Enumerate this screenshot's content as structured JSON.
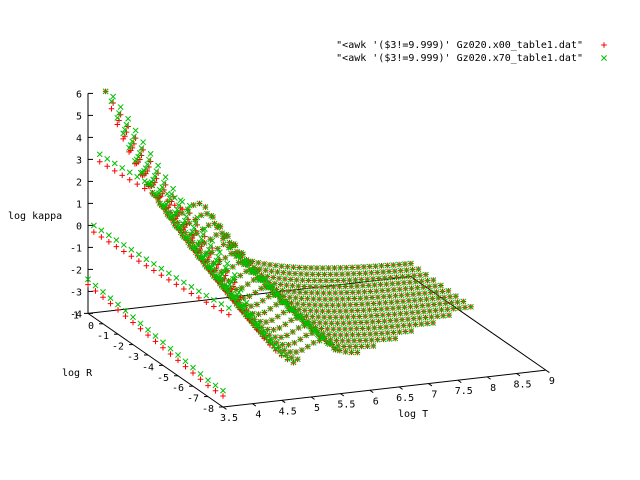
{
  "chart_data": {
    "type": "scatter",
    "title": "",
    "xlabel": "log T",
    "ylabel": "log R",
    "zlabel": "log kappa",
    "x_ticks": [
      "3.5",
      "4",
      "4.5",
      "5",
      "5.5",
      "6",
      "6.5",
      "7",
      "7.5",
      "8",
      "8.5",
      "9"
    ],
    "y_ticks": [
      "1",
      "0",
      "-1",
      "-2",
      "-3",
      "-4",
      "-5",
      "-6",
      "-7",
      "-8"
    ],
    "z_ticks": [
      "-4",
      "-3",
      "-2",
      "-1",
      "0",
      "1",
      "2",
      "3",
      "4",
      "5",
      "6"
    ],
    "xlim": [
      3.5,
      9
    ],
    "ylim": [
      -8,
      1
    ],
    "zlim": [
      -4,
      6
    ],
    "grid": false,
    "legend_position": "top-right",
    "x_step": 0.05,
    "y_rows": [
      1,
      0.5,
      0,
      -0.5,
      -1,
      -1.5,
      -2,
      -2.5,
      -3,
      -3.5,
      -4,
      -4.5,
      -5,
      -5.5,
      -6,
      -6.5,
      -7,
      -7.5,
      -8
    ],
    "series": [
      {
        "name": "\"<awk '($3!=9.999)' Gz020.x00_table1.dat\"",
        "color": "#ff0000",
        "marker": "plus",
        "kappa_offset": 0.0
      },
      {
        "name": "\"<awk '($3!=9.999)' Gz020.x70_table1.dat\"",
        "color": "#00c000",
        "marker": "cross",
        "kappa_offset": 0.35
      }
    ]
  }
}
